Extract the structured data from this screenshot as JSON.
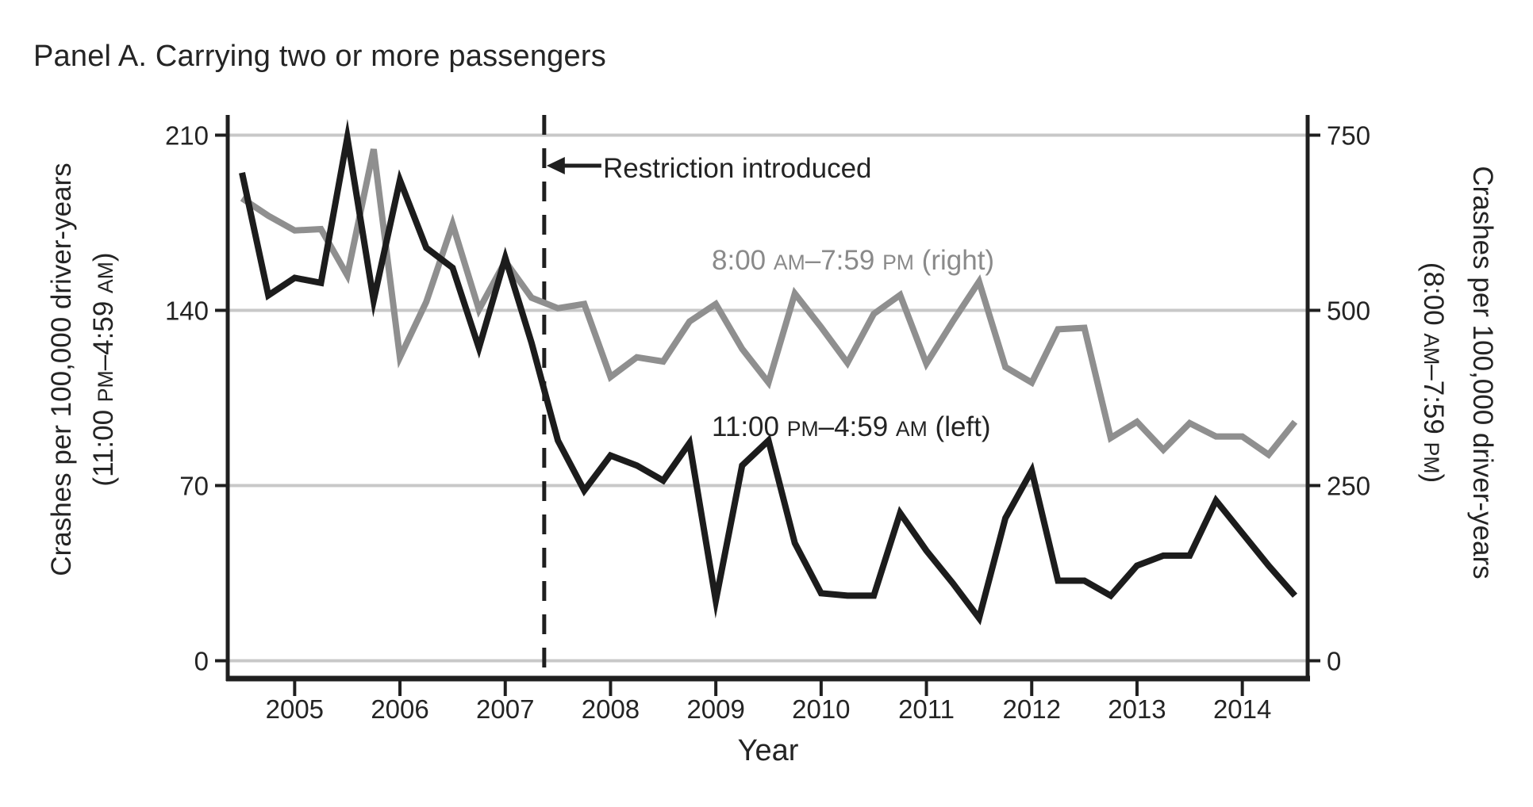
{
  "title": "Panel A. Carrying two or more passengers",
  "colors": {
    "axis": "#1f1f1f",
    "grid": "#c8c8c8",
    "night_line": "#1c1c1c",
    "day_line": "#8f8f8f",
    "gray_text": "#8a8a8a",
    "text": "#242424"
  },
  "chart_data": {
    "type": "line",
    "title": "Panel A. Carrying two or more passengers",
    "x_axis": {
      "label": "Year",
      "ticks": [
        2005,
        2006,
        2007,
        2008,
        2009,
        2010,
        2011,
        2012,
        2013,
        2014
      ],
      "range": [
        2004.35,
        2014.65
      ]
    },
    "left_axis": {
      "label_line1": "Crashes per 100,000 driver-years",
      "label_line2_parts": [
        {
          "t": "(11:00 "
        },
        {
          "t": "PM",
          "sc": true
        },
        {
          "t": "–4:59 "
        },
        {
          "t": "AM",
          "sc": true
        },
        {
          "t": ")"
        }
      ],
      "ticks": [
        0,
        70,
        140,
        210
      ],
      "range": [
        0,
        210
      ],
      "grid": true
    },
    "right_axis": {
      "label_line1": "Crashes per 100,000 driver-years",
      "label_line2_parts": [
        {
          "t": "(8:00 "
        },
        {
          "t": "AM",
          "sc": true
        },
        {
          "t": "–7:59 "
        },
        {
          "t": "PM",
          "sc": true
        },
        {
          "t": ")"
        }
      ],
      "ticks": [
        0,
        250,
        500,
        750
      ],
      "range": [
        0,
        750
      ]
    },
    "reference_line": {
      "x": 2007.37,
      "style": "dashed",
      "label": "Restriction introduced"
    },
    "x": [
      2004.5,
      2004.75,
      2005.0,
      2005.25,
      2005.5,
      2005.75,
      2006.0,
      2006.25,
      2006.5,
      2006.75,
      2007.0,
      2007.25,
      2007.5,
      2007.75,
      2008.0,
      2008.25,
      2008.5,
      2008.75,
      2009.0,
      2009.25,
      2009.5,
      2009.75,
      2010.0,
      2010.25,
      2010.5,
      2010.75,
      2011.0,
      2011.25,
      2011.5,
      2011.75,
      2012.0,
      2012.25,
      2012.5,
      2012.75,
      2013.0,
      2013.25,
      2013.5,
      2013.75,
      2014.0,
      2014.25,
      2014.5
    ],
    "series": [
      {
        "name": "11:00 PM–4:59 AM (left)",
        "data_name": "series-night-line",
        "axis": "left",
        "color": "#1c1c1c",
        "label_parts": [
          {
            "t": "11:00 "
          },
          {
            "t": "PM",
            "sc": true
          },
          {
            "t": "–4:59 "
          },
          {
            "t": "AM",
            "sc": true
          },
          {
            "t": " (left)"
          }
        ],
        "values": [
          195,
          146,
          153,
          151,
          209,
          144,
          192,
          165,
          157,
          125,
          161,
          127,
          88,
          68,
          82,
          78,
          72,
          87,
          24,
          78,
          88,
          47,
          27,
          26,
          26,
          59,
          44,
          31,
          17,
          57,
          76,
          32,
          32,
          26,
          38,
          42,
          42,
          64,
          51,
          38,
          26
        ]
      },
      {
        "name": "8:00 AM–7:59 PM (right)",
        "data_name": "series-day-line",
        "axis": "right",
        "color": "#8f8f8f",
        "label_parts": [
          {
            "t": "8:00 "
          },
          {
            "t": "AM",
            "sc": true
          },
          {
            "t": "–7:59 "
          },
          {
            "t": "PM",
            "sc": true
          },
          {
            "t": " (right)"
          }
        ],
        "values": [
          660,
          635,
          614,
          616,
          550,
          730,
          433,
          512,
          623,
          501,
          570,
          518,
          503,
          509,
          405,
          433,
          427,
          484,
          509,
          445,
          397,
          524,
          476,
          425,
          495,
          522,
          424,
          484,
          541,
          419,
          397,
          473,
          475,
          318,
          341,
          301,
          339,
          320,
          320,
          294,
          341
        ]
      }
    ],
    "legend_position": "in-plot text labels",
    "grid": "horizontal"
  }
}
